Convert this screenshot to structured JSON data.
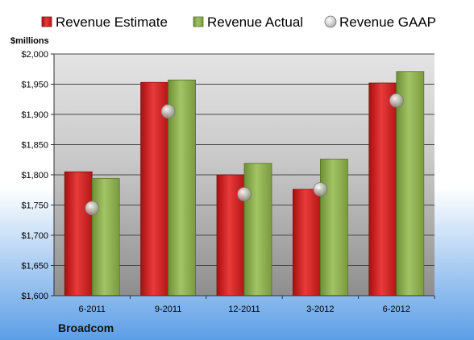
{
  "chart_data": {
    "type": "bar",
    "unit_label": "$millions",
    "company": "Broadcom",
    "categories": [
      "6-2011",
      "9-2011",
      "12-2011",
      "3-2012",
      "6-2012"
    ],
    "series": [
      {
        "name": "Revenue Estimate",
        "kind": "bar",
        "color": "#d42020",
        "values": [
          1805,
          1953,
          1800,
          1776,
          1952
        ]
      },
      {
        "name": "Revenue Actual",
        "kind": "bar",
        "color": "#8fb04f",
        "values": [
          1794,
          1957,
          1819,
          1826,
          1971
        ]
      },
      {
        "name": "Revenue GAAP",
        "kind": "marker",
        "color": "#b8b8b8",
        "values": [
          1745,
          1905,
          1768,
          1776,
          1923
        ]
      }
    ],
    "ylim": [
      1600,
      2000
    ],
    "yticks": [
      1600,
      1650,
      1700,
      1750,
      1800,
      1850,
      1900,
      1950,
      2000
    ],
    "ytick_labels": [
      "$1,600",
      "$1,650",
      "$1,700",
      "$1,750",
      "$1,800",
      "$1,850",
      "$1,900",
      "$1,950",
      "$2,000"
    ],
    "grid": true,
    "legend_position": "top"
  }
}
